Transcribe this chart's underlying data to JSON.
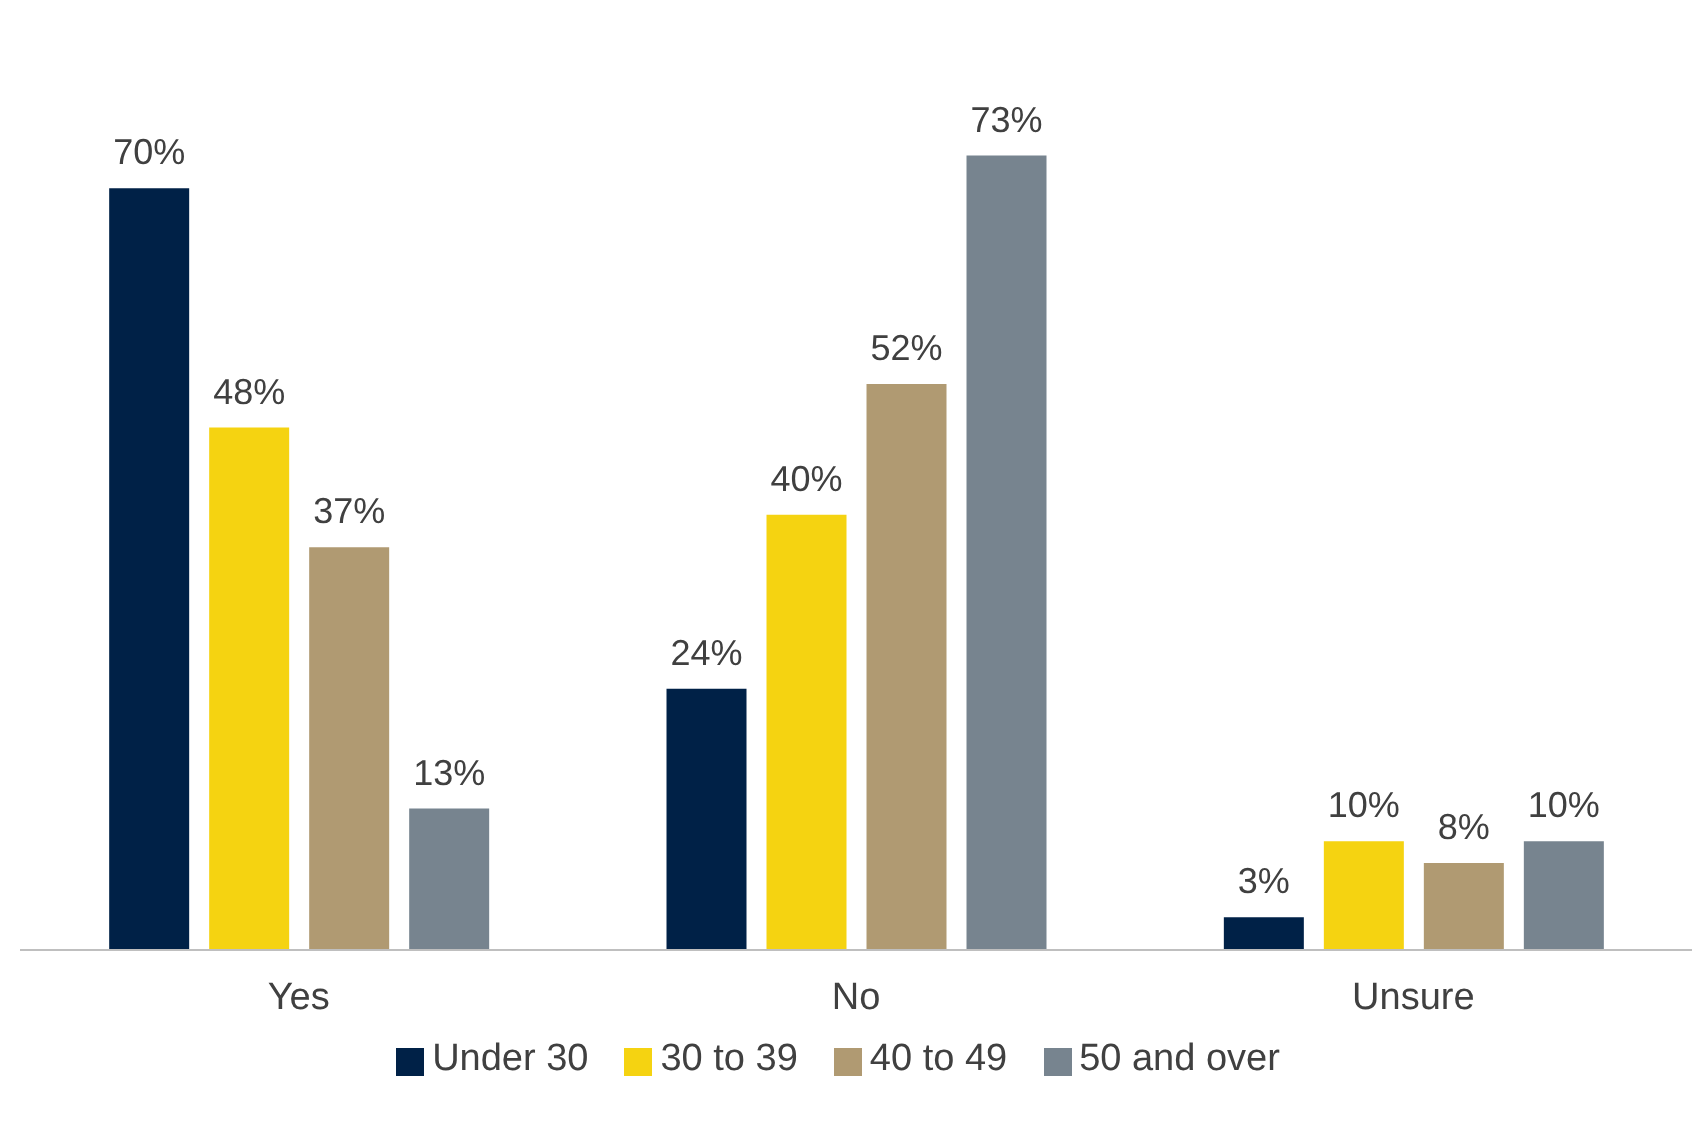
{
  "chart_data": {
    "type": "bar",
    "categories": [
      "Yes",
      "No",
      "Unsure"
    ],
    "series": [
      {
        "name": "Under 30",
        "color": "#002147",
        "values": [
          70,
          24,
          3
        ],
        "value_labels": [
          "70%",
          "24%",
          "3%"
        ]
      },
      {
        "name": "30 to 39",
        "color": "#f5d311",
        "values": [
          48,
          40,
          10
        ],
        "value_labels": [
          "48%",
          "40%",
          "10%"
        ]
      },
      {
        "name": "40 to 49",
        "color": "#b09a72",
        "values": [
          37,
          52,
          8
        ],
        "value_labels": [
          "37%",
          "52%",
          "8%"
        ]
      },
      {
        "name": "50 and over",
        "color": "#77848f",
        "values": [
          13,
          73,
          10
        ],
        "value_labels": [
          "13%",
          "73%",
          "10%"
        ]
      }
    ],
    "grid": false,
    "legend": "bottom"
  }
}
